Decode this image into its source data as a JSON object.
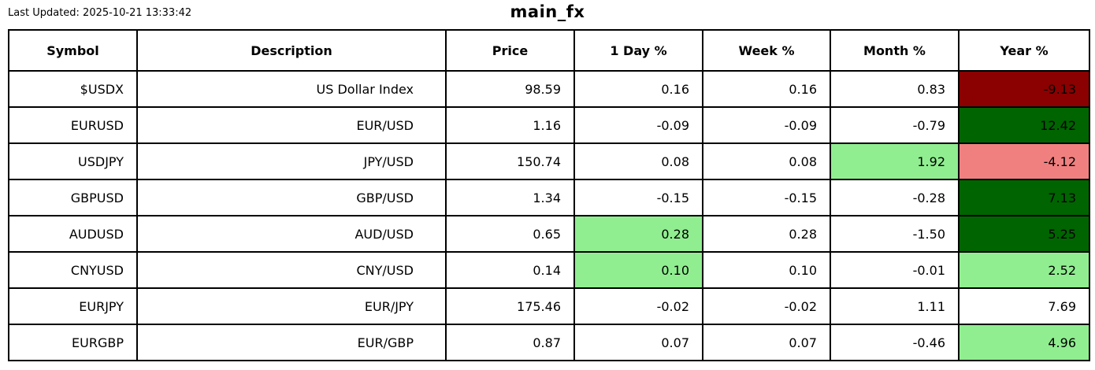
{
  "meta": {
    "last_updated": "Last Updated: 2025-10-21 13:33:42",
    "title": "main_fx"
  },
  "colors": {
    "strong_positive": "#006400",
    "positive": "#90EE90",
    "negative": "#F08080",
    "strong_negative": "#8B0000",
    "border": "#000000",
    "background": "#FFFFFF",
    "text": "#000000"
  },
  "chart_data": {
    "type": "table",
    "title": "main_fx",
    "columns": [
      "Symbol",
      "Description",
      "Price",
      "1 Day %",
      "Week %",
      "Month %",
      "Year %"
    ],
    "column_keys": [
      "symbol",
      "description",
      "price",
      "day",
      "week",
      "month",
      "year"
    ],
    "rows": [
      {
        "symbol": "$USDX",
        "description": "US Dollar Index",
        "price": "98.59",
        "day": "0.16",
        "week": "0.16",
        "month": "0.83",
        "year": "-9.13",
        "highlights": {
          "year": "strong_negative"
        }
      },
      {
        "symbol": "EURUSD",
        "description": "EUR/USD",
        "price": "1.16",
        "day": "-0.09",
        "week": "-0.09",
        "month": "-0.79",
        "year": "12.42",
        "highlights": {
          "year": "strong_positive"
        }
      },
      {
        "symbol": "USDJPY",
        "description": "JPY/USD",
        "price": "150.74",
        "day": "0.08",
        "week": "0.08",
        "month": "1.92",
        "year": "-4.12",
        "highlights": {
          "month": "positive",
          "year": "negative"
        }
      },
      {
        "symbol": "GBPUSD",
        "description": "GBP/USD",
        "price": "1.34",
        "day": "-0.15",
        "week": "-0.15",
        "month": "-0.28",
        "year": "7.13",
        "highlights": {
          "year": "strong_positive"
        }
      },
      {
        "symbol": "AUDUSD",
        "description": "AUD/USD",
        "price": "0.65",
        "day": "0.28",
        "week": "0.28",
        "month": "-1.50",
        "year": "5.25",
        "highlights": {
          "day": "positive",
          "year": "strong_positive"
        }
      },
      {
        "symbol": "CNYUSD",
        "description": "CNY/USD",
        "price": "0.14",
        "day": "0.10",
        "week": "0.10",
        "month": "-0.01",
        "year": "2.52",
        "highlights": {
          "day": "positive",
          "year": "positive"
        }
      },
      {
        "symbol": "EURJPY",
        "description": "EUR/JPY",
        "price": "175.46",
        "day": "-0.02",
        "week": "-0.02",
        "month": "1.11",
        "year": "7.69",
        "highlights": {}
      },
      {
        "symbol": "EURGBP",
        "description": "EUR/GBP",
        "price": "0.87",
        "day": "0.07",
        "week": "0.07",
        "month": "-0.46",
        "year": "4.96",
        "highlights": {
          "year": "positive"
        }
      }
    ]
  }
}
